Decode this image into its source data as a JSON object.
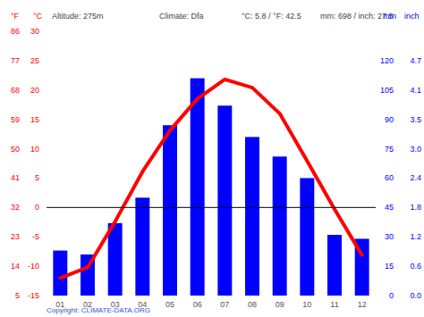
{
  "chart_data": {
    "type": "bar",
    "annotations": [
      "Altitude: 275m",
      "Climate: Dfa",
      "°C: 5.8 / °F: 42.5",
      "mm: 698 / inch: 27.5"
    ],
    "source": "Copyright: CLIMATE-DATA.ORG",
    "categories": [
      "01",
      "02",
      "03",
      "04",
      "05",
      "06",
      "07",
      "08",
      "09",
      "10",
      "11",
      "12"
    ],
    "series": [
      {
        "name": "mm",
        "type": "bar",
        "axis": "y2",
        "color": "#0000ff",
        "values": [
          23,
          21,
          37,
          50,
          87,
          111,
          97,
          81,
          71,
          60,
          31,
          29
        ]
      },
      {
        "name": "°C",
        "type": "line",
        "color": "#ff0000",
        "values": [
          -12.0,
          -10.2,
          -2.4,
          6.1,
          13.1,
          18.5,
          21.8,
          20.4,
          16.0,
          7.9,
          -0.3,
          -8.1
        ]
      }
    ],
    "ylim": [
      -15,
      30
    ],
    "yticks": [
      -15,
      -10,
      -5,
      0,
      5,
      10,
      15,
      20,
      25,
      30
    ],
    "y_alt_label": "°F",
    "y_alt_ticks": [
      {
        "value": -15,
        "label": "5"
      },
      {
        "value": -10,
        "label": "14"
      },
      {
        "value": -5,
        "label": "23"
      },
      {
        "value": 0,
        "label": "32"
      },
      {
        "value": 5,
        "label": "41"
      },
      {
        "value": 10,
        "label": "50"
      },
      {
        "value": 15,
        "label": "59"
      },
      {
        "value": 20,
        "label": "68"
      },
      {
        "value": 25,
        "label": "77"
      },
      {
        "value": 30,
        "label": "86"
      }
    ],
    "y2lim": [
      0,
      135
    ],
    "y2ticks": [
      0,
      15,
      30,
      45,
      60,
      75,
      90,
      105,
      120
    ],
    "y2_alt_label": "inch",
    "y2_alt_ticks": [
      {
        "value": 0,
        "label": "0.0"
      },
      {
        "value": 15,
        "label": "0.6"
      },
      {
        "value": 30,
        "label": "1.2"
      },
      {
        "value": 45,
        "label": "1.8"
      },
      {
        "value": 60,
        "label": "2.4"
      },
      {
        "value": 75,
        "label": "3.0"
      },
      {
        "value": 90,
        "label": "3.5"
      },
      {
        "value": 105,
        "label": "4.1"
      },
      {
        "value": 120,
        "label": "4.7"
      }
    ],
    "grid": false
  }
}
